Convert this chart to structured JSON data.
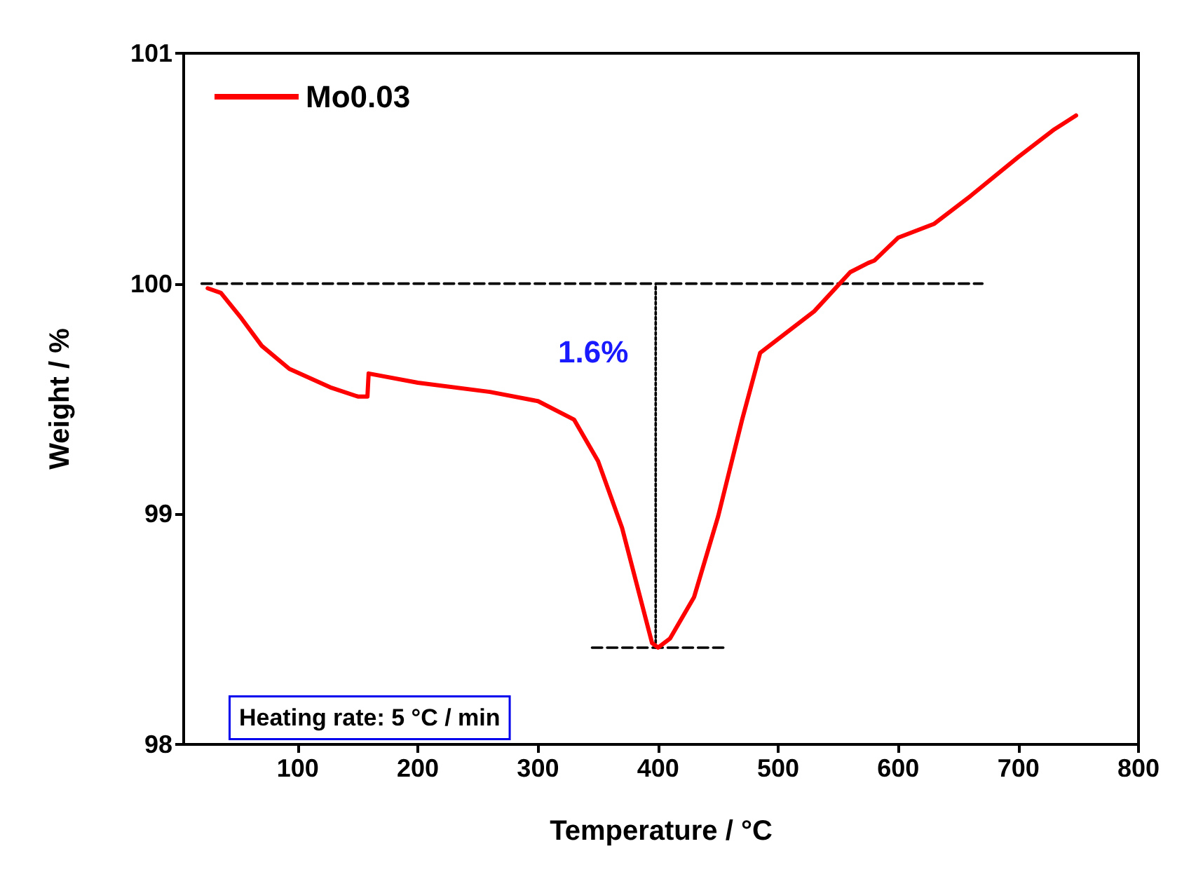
{
  "chart_data": {
    "type": "line",
    "xlabel": "Temperature / °C",
    "ylabel": "Weight / %",
    "xlim": [
      5,
      800
    ],
    "xticks": [
      100,
      200,
      300,
      400,
      500,
      600,
      700,
      800
    ],
    "ylim": [
      98,
      101
    ],
    "yticks": [
      98,
      99,
      100,
      101
    ],
    "grid": false,
    "legend": "top left",
    "marker": "none",
    "line_style": "solid",
    "series": [
      {
        "name": "Mo0.03",
        "color": "#ff0000",
        "x": [
          25,
          36,
          53,
          70,
          93,
          127,
          150,
          158,
          159,
          200,
          260,
          300,
          330,
          350,
          370,
          385,
          395,
          400,
          410,
          430,
          450,
          470,
          485,
          500,
          530,
          560,
          575,
          580,
          600,
          630,
          660,
          700,
          730,
          748
        ],
        "values": [
          99.98,
          99.96,
          99.85,
          99.73,
          99.63,
          99.55,
          99.51,
          99.51,
          99.61,
          99.57,
          99.53,
          99.49,
          99.41,
          99.23,
          98.94,
          98.64,
          98.44,
          98.42,
          98.46,
          98.64,
          98.99,
          99.41,
          99.7,
          99.76,
          99.88,
          100.05,
          100.09,
          100.1,
          100.2,
          100.26,
          100.38,
          100.55,
          100.67,
          100.73
        ]
      },
      {
        "type": "line",
        "color": "#000000",
        "line_style": "dashed",
        "x": [
          20,
          670
        ],
        "values": [
          100,
          100
        ]
      },
      {
        "type": "line",
        "color": "#000000",
        "line_style": "dashed",
        "x": [
          345,
          455
        ],
        "values": [
          98.42,
          98.42
        ]
      },
      {
        "type": "line",
        "color": "#000000",
        "line_style": "dotted",
        "x": [
          398,
          398
        ],
        "values": [
          98.42,
          100
        ]
      }
    ],
    "annotations": [
      "1.6%",
      "Heating rate: 5 °C / min"
    ]
  }
}
